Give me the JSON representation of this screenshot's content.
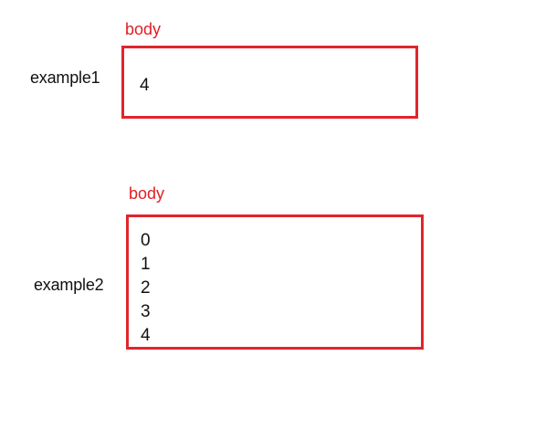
{
  "example1": {
    "label": "example1",
    "tag": "body",
    "value": "4",
    "accent_color": "#e0252b"
  },
  "example2": {
    "label": "example2",
    "tag": "body",
    "values": [
      "0",
      "1",
      "2",
      "3",
      "4"
    ],
    "accent_color": "#e0252b"
  }
}
